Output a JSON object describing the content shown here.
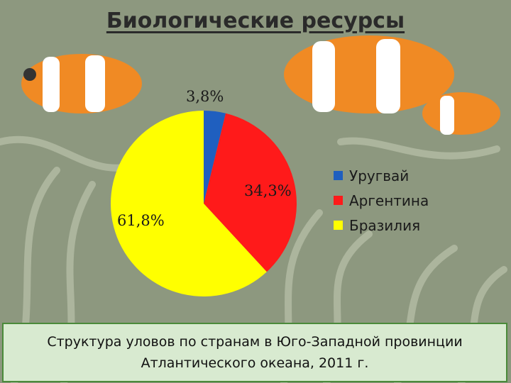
{
  "title": "Биологические ресурсы",
  "caption_lines": [
    "Структура уловов по странам в Юго-Западной провинции",
    "Атлантического океана, 2011 г."
  ],
  "chart_data": {
    "type": "pie",
    "title": "Биологические ресурсы",
    "slices": [
      {
        "name": "Уругвай",
        "value": 3.8,
        "label": "3,8%",
        "color": "#1f5fbf"
      },
      {
        "name": "Аргентина",
        "value": 34.3,
        "label": "34,3%",
        "color": "#ff1a1a"
      },
      {
        "name": "Бразилия",
        "value": 61.8,
        "label": "61,8%",
        "color": "#ffff00"
      }
    ],
    "legend_position": "right"
  },
  "background_colors": {
    "fish": "#f08a24",
    "stripe": "#ffffff"
  }
}
